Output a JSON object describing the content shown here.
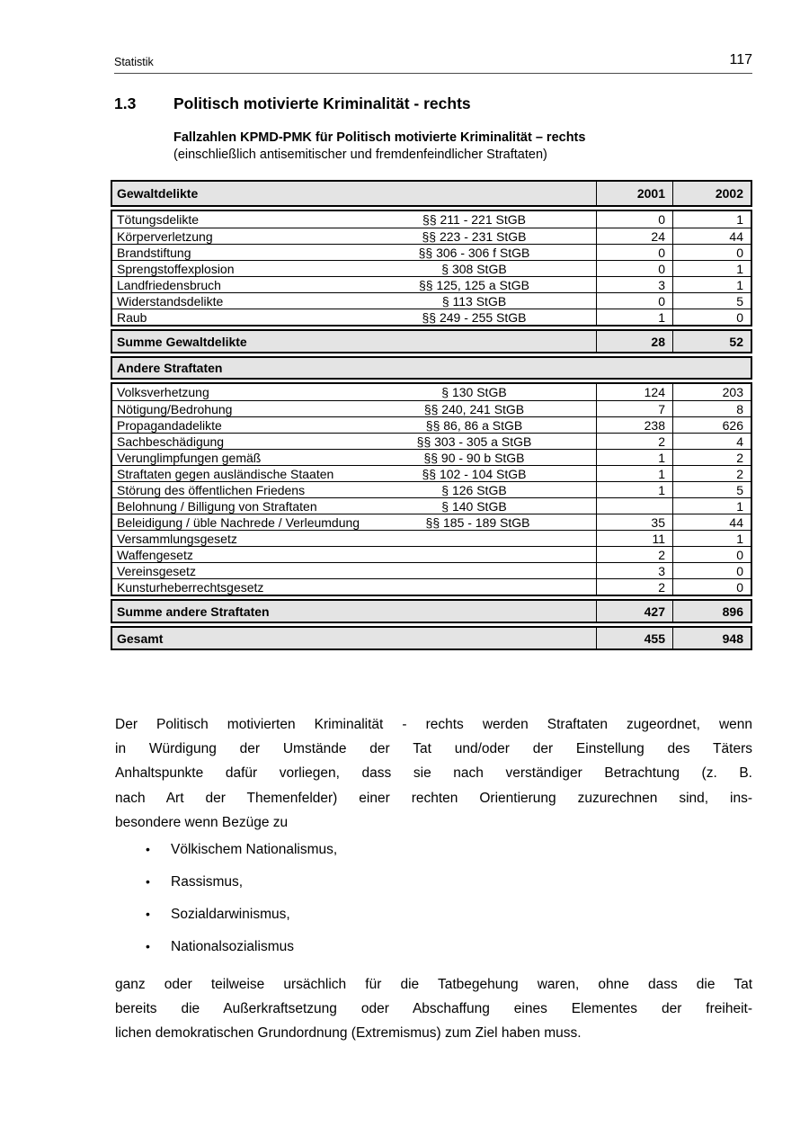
{
  "page": {
    "header_left": "Statistik",
    "page_number": "117"
  },
  "heading": {
    "number": "1.3",
    "title": "Politisch motivierte Kriminalität - rechts"
  },
  "subtitle": {
    "line1": "Fallzahlen KPMD-PMK für Politisch motivierte Kriminalität – rechts",
    "line2": "(einschließlich antisemitischer und fremdenfeindlicher Straftaten)"
  },
  "table": {
    "header": {
      "label": "Gewaltdelikte",
      "col_2001": "2001",
      "col_2002": "2002"
    },
    "violence_rows": [
      {
        "name": "Tötungsdelikte",
        "para": "§§ 211 - 221 StGB",
        "y2001": "0",
        "y2002": "1"
      },
      {
        "name": "Körperverletzung",
        "para": "§§ 223 - 231 StGB",
        "y2001": "24",
        "y2002": "44"
      },
      {
        "name": "Brandstiftung",
        "para": "§§ 306 - 306 f StGB",
        "y2001": "0",
        "y2002": "0"
      },
      {
        "name": "Sprengstoffexplosion",
        "para": "§ 308 StGB",
        "y2001": "0",
        "y2002": "1"
      },
      {
        "name": "Landfriedensbruch",
        "para": "§§ 125, 125 a StGB",
        "y2001": "3",
        "y2002": "1"
      },
      {
        "name": "Widerstandsdelikte",
        "para": "§ 113 StGB",
        "y2001": "0",
        "y2002": "5"
      },
      {
        "name": "Raub",
        "para": "§§ 249 - 255 StGB",
        "y2001": "1",
        "y2002": "0"
      }
    ],
    "sum_violence": {
      "label": "Summe Gewaltdelikte",
      "y2001": "28",
      "y2002": "52"
    },
    "section2_label": "Andere Straftaten",
    "other_rows": [
      {
        "name": "Volksverhetzung",
        "para": "§ 130 StGB",
        "y2001": "124",
        "y2002": "203"
      },
      {
        "name": "Nötigung/Bedrohung",
        "para": "§§ 240, 241 StGB",
        "y2001": "7",
        "y2002": "8"
      },
      {
        "name": "Propagandadelikte",
        "para": "§§ 86, 86 a StGB",
        "y2001": "238",
        "y2002": "626"
      },
      {
        "name": "Sachbeschädigung",
        "para": "§§ 303 - 305 a StGB",
        "y2001": "2",
        "y2002": "4"
      },
      {
        "name": "Verunglimpfungen gemäß",
        "para": "§§ 90 - 90 b StGB",
        "y2001": "1",
        "y2002": "2"
      },
      {
        "name": "Straftaten gegen ausländische Staaten",
        "para": "§§ 102 - 104 StGB",
        "y2001": "1",
        "y2002": "2"
      },
      {
        "name": "Störung des öffentlichen Friedens",
        "para": "§ 126 StGB",
        "y2001": "1",
        "y2002": "5"
      },
      {
        "name": "Belohnung / Billigung von Straftaten",
        "para": "§ 140 StGB",
        "y2001": "",
        "y2002": "1"
      },
      {
        "name": "Beleidigung / üble Nachrede / Verleumdung",
        "para": "§§ 185 - 189 StGB",
        "y2001": "35",
        "y2002": "44"
      },
      {
        "name": "Versammlungsgesetz",
        "para": "",
        "y2001": "11",
        "y2002": "1"
      },
      {
        "name": "Waffengesetz",
        "para": "",
        "y2001": "2",
        "y2002": "0"
      },
      {
        "name": "Vereinsgesetz",
        "para": "",
        "y2001": "3",
        "y2002": "0"
      },
      {
        "name": "Kunsturheberrechtsgesetz",
        "para": "",
        "y2001": "2",
        "y2002": "0"
      }
    ],
    "sum_other": {
      "label": "Summe andere Straftaten",
      "y2001": "427",
      "y2002": "896"
    },
    "total": {
      "label": "Gesamt",
      "y2001": "455",
      "y2002": "948"
    }
  },
  "paragraph1_lines": [
    "Der Politisch motivierten Kriminalität - rechts werden Straftaten zugeordnet, wenn",
    "in Würdigung der Umstände der Tat und/oder der Einstellung des Täters",
    "Anhaltspunkte dafür vorliegen, dass sie nach verständiger Betrachtung (z. B.",
    "nach Art der Themenfelder) einer rechten Orientierung zuzurechnen sind, ins-",
    "besondere wenn Bezüge zu"
  ],
  "bullet_char": "•",
  "bullets": [
    "Völkischem Nationalismus,",
    "Rassismus,",
    "Sozialdarwinismus,",
    "Nationalsozialismus"
  ],
  "paragraph2_lines": [
    "ganz oder teilweise ursächlich für die Tatbegehung waren, ohne dass die Tat",
    "bereits die Außerkraftsetzung oder Abschaffung eines Elementes der freiheit-",
    "lichen demokratischen Grundordnung (Extremismus) zum Ziel haben muss.",
    ""
  ],
  "colors": {
    "table_section_bg": "#e4e4e4",
    "border": "#000000",
    "header_rule": "#4a4a4a"
  }
}
